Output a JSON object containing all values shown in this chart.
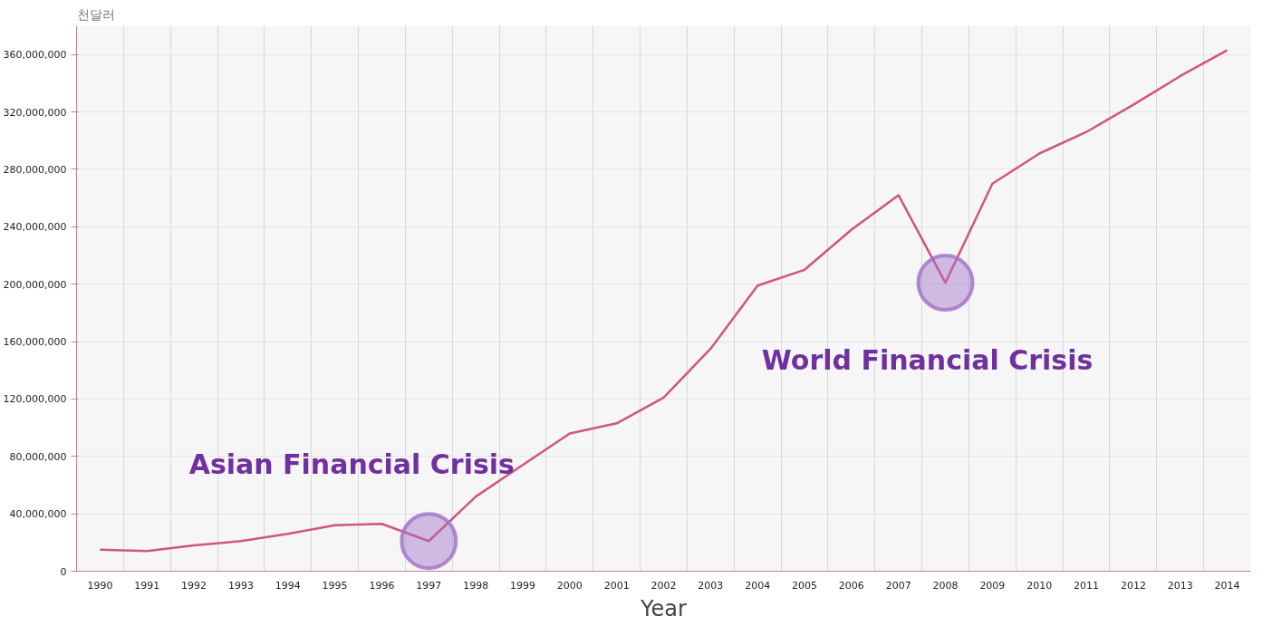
{
  "chart_data": {
    "type": "line",
    "ylabel": "천달러",
    "xlabel": "Year",
    "categories": [
      "1990",
      "1991",
      "1992",
      "1993",
      "1994",
      "1995",
      "1996",
      "1997",
      "1998",
      "1999",
      "2000",
      "2001",
      "2002",
      "2003",
      "2004",
      "2005",
      "2006",
      "2007",
      "2008",
      "2009",
      "2010",
      "2011",
      "2012",
      "2013",
      "2014"
    ],
    "series": [
      {
        "color": "#d0567c",
        "values": [
          15000000,
          14000000,
          18000000,
          21000000,
          26000000,
          32000000,
          33000000,
          21000000,
          52000000,
          74000000,
          96000000,
          103000000,
          121000000,
          155000000,
          199000000,
          210000000,
          238000000,
          262000000,
          201000000,
          270000000,
          291000000,
          306000000,
          325000000,
          345000000,
          363000000
        ]
      },
      {
        "type": "scatter",
        "marker": "circle",
        "color": "#a070c8",
        "values": [
          null,
          null,
          null,
          null,
          null,
          null,
          null,
          21000000,
          null,
          null,
          null,
          null,
          null,
          null,
          null,
          null,
          null,
          null,
          201000000,
          null,
          null,
          null,
          null,
          null,
          null
        ]
      }
    ],
    "annotations": [
      {
        "text": "Asian Financial Crisis",
        "x": "1997",
        "y": 21000000
      },
      {
        "text": "World Financial Crisis",
        "x": "2008",
        "y": 201000000
      }
    ],
    "ylim": [
      0,
      380000000
    ],
    "yticks": [
      {
        "value": 0,
        "label": "0"
      },
      {
        "value": 40000000,
        "label": "40,000,000"
      },
      {
        "value": 80000000,
        "label": "80,000,000"
      },
      {
        "value": 120000000,
        "label": "120,000,000"
      },
      {
        "value": 160000000,
        "label": "160,000,000"
      },
      {
        "value": 200000000,
        "label": "200,000,000"
      },
      {
        "value": 240000000,
        "label": "240,000,000"
      },
      {
        "value": 280000000,
        "label": "280,000,000"
      },
      {
        "value": 320000000,
        "label": "320,000,000"
      },
      {
        "value": 360000000,
        "label": "360,000,000"
      }
    ],
    "grid": true,
    "marker": "none",
    "line_style": "solid"
  }
}
